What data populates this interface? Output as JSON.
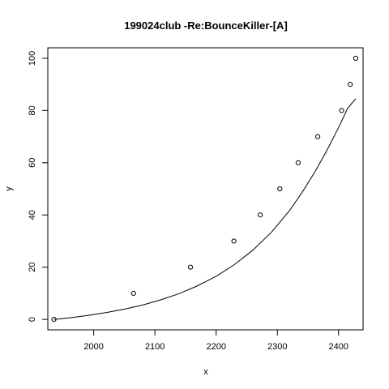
{
  "chart_data": {
    "type": "scatter",
    "title": "199024club -Re:BounceKiller-[A]",
    "xlabel": "x",
    "ylabel": "y",
    "xlim": [
      1925,
      2440
    ],
    "ylim": [
      -4,
      104
    ],
    "x_ticks": [
      2000,
      2100,
      2200,
      2300,
      2400
    ],
    "y_ticks": [
      0,
      20,
      40,
      60,
      80,
      100
    ],
    "grid": false,
    "legend": "none",
    "series": [
      {
        "kind": "points",
        "marker": "open-circle",
        "x": [
          1935,
          2065,
          2158,
          2229,
          2272,
          2304,
          2334,
          2366,
          2405,
          2419,
          2428
        ],
        "y": [
          0,
          10,
          20,
          30,
          40,
          50,
          60,
          70,
          80,
          90,
          100
        ]
      },
      {
        "kind": "fitted-line",
        "x": [
          1935,
          1960,
          1990,
          2020,
          2050,
          2080,
          2110,
          2140,
          2170,
          2200,
          2230,
          2260,
          2290,
          2320,
          2340,
          2360,
          2380,
          2400,
          2415,
          2428
        ],
        "y": [
          0,
          0.6,
          1.5,
          2.6,
          3.9,
          5.5,
          7.5,
          9.9,
          12.9,
          16.5,
          21.0,
          26.5,
          33.3,
          41.7,
          48.5,
          56.0,
          64.3,
          73.5,
          80.9,
          84.5
        ]
      }
    ]
  }
}
